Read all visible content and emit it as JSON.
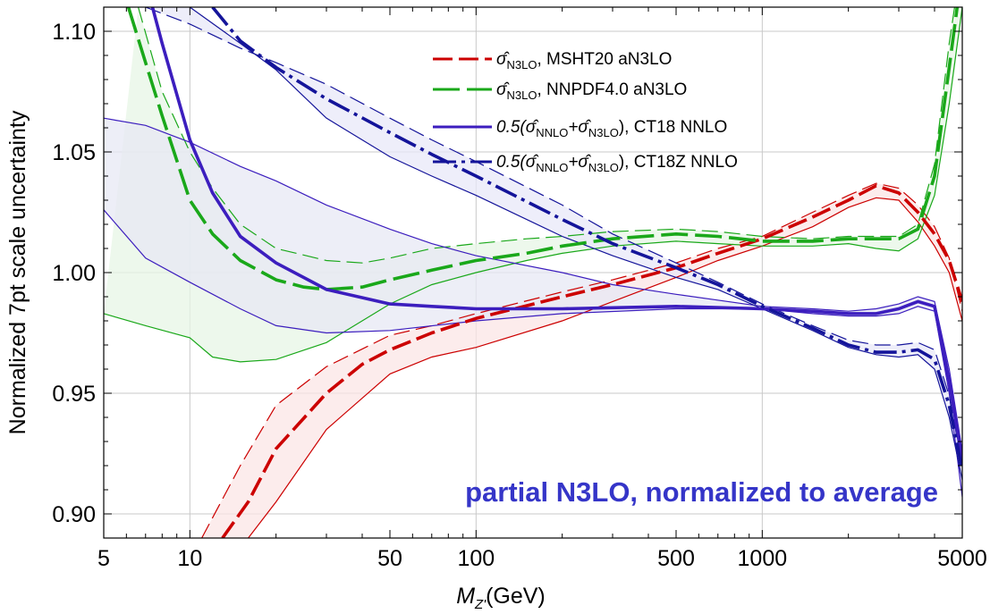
{
  "chart_data": {
    "type": "line",
    "xscale": "log",
    "xlim": [
      5,
      5000
    ],
    "ylim": [
      0.89,
      1.11
    ],
    "grid": true,
    "legend_position": "top-right",
    "xlabel": {
      "main": "M",
      "sub": "Z'",
      "unit": "(GeV)"
    },
    "ylabel": "Normalized 7pt scale uncertainty",
    "annotation": "partial N3LO, normalized to average",
    "annotation_color": "#3535c8",
    "x_ticks": [
      {
        "value": 5,
        "label": "5"
      },
      {
        "value": 10,
        "label": "10"
      },
      {
        "value": 50,
        "label": "50"
      },
      {
        "value": 100,
        "label": "100"
      },
      {
        "value": 500,
        "label": "500"
      },
      {
        "value": 1000,
        "label": "1000"
      },
      {
        "value": 5000,
        "label": "5000"
      }
    ],
    "x_grid": [
      10,
      100,
      1000
    ],
    "x_minor_ticks": [
      6,
      7,
      8,
      9,
      20,
      30,
      40,
      60,
      70,
      80,
      90,
      200,
      300,
      400,
      600,
      700,
      800,
      900,
      2000,
      3000,
      4000
    ],
    "y_ticks": [
      {
        "value": 0.9,
        "label": "0.90"
      },
      {
        "value": 0.95,
        "label": "0.95"
      },
      {
        "value": 1.0,
        "label": "1.00"
      },
      {
        "value": 1.05,
        "label": "1.05"
      },
      {
        "value": 1.1,
        "label": "1.10"
      }
    ],
    "legend": [
      {
        "series": "mshtb",
        "prefix": "σ̂",
        "sub1": "N3LO",
        "mid": "",
        "sub2": "",
        "suffix": ", MSHT20 aN3LO"
      },
      {
        "series": "nnpdfb",
        "prefix": "σ̂",
        "sub1": "N3LO",
        "mid": "",
        "sub2": "",
        "suffix": ", NNPDF4.0 aN3LO"
      },
      {
        "series": "ct18b",
        "prefix": "0.5(σ̂",
        "sub1": "NNLO",
        "mid": "+σ̂",
        "sub2": "N3LO",
        "suffix": "), CT18 NNLO"
      },
      {
        "series": "ct18zb",
        "prefix": "0.5(σ̂",
        "sub1": "NNLO",
        "mid": "+σ̂",
        "sub2": "N3LO",
        "suffix": "), CT18Z NNLO"
      }
    ],
    "bands": [
      {
        "id": "mshtb",
        "color": "#cc0000",
        "fill": "#fbe6e6",
        "dash": "22 7",
        "central": [
          [
            13,
            0.89
          ],
          [
            16,
            0.905
          ],
          [
            20,
            0.927
          ],
          [
            30,
            0.95
          ],
          [
            40,
            0.962
          ],
          [
            50,
            0.968
          ],
          [
            70,
            0.975
          ],
          [
            100,
            0.981
          ],
          [
            200,
            0.99
          ],
          [
            300,
            0.995
          ],
          [
            500,
            1.002
          ],
          [
            700,
            1.008
          ],
          [
            1000,
            1.014
          ],
          [
            1500,
            1.023
          ],
          [
            2000,
            1.03
          ],
          [
            2500,
            1.036
          ],
          [
            3000,
            1.033
          ],
          [
            3500,
            1.025
          ],
          [
            4000,
            1.016
          ],
          [
            4500,
            1.005
          ],
          [
            5000,
            0.988
          ]
        ],
        "upper": [
          [
            11,
            0.89
          ],
          [
            15,
            0.92
          ],
          [
            20,
            0.945
          ],
          [
            30,
            0.961
          ],
          [
            50,
            0.974
          ],
          [
            70,
            0.978
          ],
          [
            100,
            0.983
          ],
          [
            200,
            0.992
          ],
          [
            300,
            0.997
          ],
          [
            500,
            1.004
          ],
          [
            700,
            1.01
          ],
          [
            1000,
            1.015
          ],
          [
            1500,
            1.025
          ],
          [
            2000,
            1.032
          ],
          [
            2500,
            1.037
          ],
          [
            3000,
            1.035
          ],
          [
            3500,
            1.028
          ],
          [
            4000,
            1.019
          ],
          [
            4500,
            1.006
          ],
          [
            5000,
            0.984
          ]
        ],
        "lower": [
          [
            16,
            0.89
          ],
          [
            20,
            0.905
          ],
          [
            30,
            0.935
          ],
          [
            50,
            0.958
          ],
          [
            70,
            0.965
          ],
          [
            100,
            0.969
          ],
          [
            200,
            0.98
          ],
          [
            300,
            0.988
          ],
          [
            500,
            0.998
          ],
          [
            700,
            1.005
          ],
          [
            1000,
            1.011
          ],
          [
            1500,
            1.019
          ],
          [
            2000,
            1.027
          ],
          [
            2500,
            1.031
          ],
          [
            3000,
            1.03
          ],
          [
            3500,
            1.021
          ],
          [
            4000,
            1.011
          ],
          [
            4500,
            1.0
          ],
          [
            5000,
            0.98
          ]
        ]
      },
      {
        "id": "nnpdfb",
        "color": "#1aa81a",
        "fill": "#e7f5e6",
        "dash": "30 8",
        "central": [
          [
            6.1,
            1.11
          ],
          [
            7,
            1.087
          ],
          [
            8,
            1.065
          ],
          [
            10,
            1.03
          ],
          [
            12,
            1.016
          ],
          [
            15,
            1.005
          ],
          [
            20,
            0.997
          ],
          [
            25,
            0.994
          ],
          [
            30,
            0.993
          ],
          [
            40,
            0.994
          ],
          [
            50,
            0.997
          ],
          [
            70,
            1.001
          ],
          [
            100,
            1.005
          ],
          [
            150,
            1.008
          ],
          [
            200,
            1.011
          ],
          [
            300,
            1.014
          ],
          [
            500,
            1.016
          ],
          [
            700,
            1.015
          ],
          [
            1000,
            1.013
          ],
          [
            1500,
            1.013
          ],
          [
            2000,
            1.014
          ],
          [
            2500,
            1.014
          ],
          [
            3000,
            1.014
          ],
          [
            3500,
            1.018
          ],
          [
            4000,
            1.04
          ],
          [
            4500,
            1.085
          ],
          [
            4800,
            1.11
          ]
        ],
        "upper": [
          [
            6.6,
            1.11
          ],
          [
            8,
            1.075
          ],
          [
            10,
            1.05
          ],
          [
            12,
            1.035
          ],
          [
            15,
            1.02
          ],
          [
            20,
            1.01
          ],
          [
            30,
            1.005
          ],
          [
            40,
            1.004
          ],
          [
            50,
            1.006
          ],
          [
            70,
            1.01
          ],
          [
            100,
            1.012
          ],
          [
            150,
            1.014
          ],
          [
            200,
            1.015
          ],
          [
            300,
            1.017
          ],
          [
            500,
            1.018
          ],
          [
            700,
            1.017
          ],
          [
            1000,
            1.015
          ],
          [
            1500,
            1.014
          ],
          [
            2000,
            1.015
          ],
          [
            2500,
            1.015
          ],
          [
            3000,
            1.015
          ],
          [
            3500,
            1.02
          ],
          [
            4000,
            1.045
          ],
          [
            4500,
            1.095
          ],
          [
            4700,
            1.11
          ]
        ],
        "lower": [
          [
            5,
            0.983
          ],
          [
            7,
            0.978
          ],
          [
            10,
            0.973
          ],
          [
            12,
            0.965
          ],
          [
            15,
            0.963
          ],
          [
            20,
            0.964
          ],
          [
            30,
            0.971
          ],
          [
            40,
            0.98
          ],
          [
            50,
            0.987
          ],
          [
            70,
            0.995
          ],
          [
            100,
            1.0
          ],
          [
            150,
            1.005
          ],
          [
            200,
            1.008
          ],
          [
            300,
            1.011
          ],
          [
            500,
            1.013
          ],
          [
            700,
            1.012
          ],
          [
            1000,
            1.011
          ],
          [
            1500,
            1.011
          ],
          [
            2000,
            1.012
          ],
          [
            2500,
            1.01
          ],
          [
            3000,
            1.009
          ],
          [
            3500,
            1.014
          ],
          [
            4000,
            1.032
          ],
          [
            4500,
            1.07
          ],
          [
            5000,
            1.11
          ]
        ]
      },
      {
        "id": "ct18b",
        "color": "#3c1ebe",
        "fill": "#e7e8f4",
        "dash": "",
        "central": [
          [
            7.4,
            1.11
          ],
          [
            8,
            1.095
          ],
          [
            10,
            1.055
          ],
          [
            12,
            1.033
          ],
          [
            15,
            1.015
          ],
          [
            20,
            1.004
          ],
          [
            30,
            0.993
          ],
          [
            50,
            0.987
          ],
          [
            70,
            0.986
          ],
          [
            100,
            0.985
          ],
          [
            200,
            0.985
          ],
          [
            500,
            0.986
          ],
          [
            1000,
            0.985
          ],
          [
            1500,
            0.984
          ],
          [
            2000,
            0.983
          ],
          [
            2500,
            0.983
          ],
          [
            3000,
            0.985
          ],
          [
            3500,
            0.988
          ],
          [
            4000,
            0.986
          ],
          [
            4500,
            0.955
          ],
          [
            5000,
            0.922
          ]
        ],
        "upper": [
          [
            5,
            1.064
          ],
          [
            7,
            1.061
          ],
          [
            10,
            1.054
          ],
          [
            15,
            1.044
          ],
          [
            20,
            1.038
          ],
          [
            30,
            1.028
          ],
          [
            50,
            1.018
          ],
          [
            70,
            1.012
          ],
          [
            100,
            1.007
          ],
          [
            200,
            1.0
          ],
          [
            300,
            0.995
          ],
          [
            500,
            0.991
          ],
          [
            1000,
            0.986
          ],
          [
            1500,
            0.985
          ],
          [
            2000,
            0.984
          ],
          [
            2500,
            0.985
          ],
          [
            3000,
            0.987
          ],
          [
            3500,
            0.99
          ],
          [
            4000,
            0.988
          ],
          [
            4500,
            0.96
          ],
          [
            5000,
            0.926
          ]
        ],
        "lower": [
          [
            5,
            1.026
          ],
          [
            7,
            1.006
          ],
          [
            10,
            0.996
          ],
          [
            15,
            0.985
          ],
          [
            20,
            0.978
          ],
          [
            30,
            0.975
          ],
          [
            50,
            0.976
          ],
          [
            100,
            0.98
          ],
          [
            200,
            0.983
          ],
          [
            500,
            0.985
          ],
          [
            1000,
            0.985
          ],
          [
            1500,
            0.983
          ],
          [
            2000,
            0.982
          ],
          [
            2500,
            0.982
          ],
          [
            3000,
            0.983
          ],
          [
            3500,
            0.986
          ],
          [
            4000,
            0.984
          ],
          [
            4500,
            0.95
          ],
          [
            5000,
            0.907
          ]
        ]
      },
      {
        "id": "ct18zb",
        "color": "#14149a",
        "fill": "#e8e8f8",
        "dash": "26 6 4 6",
        "central": [
          [
            12,
            1.11
          ],
          [
            15,
            1.096
          ],
          [
            20,
            1.085
          ],
          [
            30,
            1.072
          ],
          [
            50,
            1.058
          ],
          [
            70,
            1.049
          ],
          [
            100,
            1.04
          ],
          [
            200,
            1.022
          ],
          [
            300,
            1.012
          ],
          [
            500,
            1.002
          ],
          [
            700,
            0.995
          ],
          [
            1000,
            0.986
          ],
          [
            1500,
            0.977
          ],
          [
            2000,
            0.97
          ],
          [
            2500,
            0.967
          ],
          [
            3000,
            0.967
          ],
          [
            3500,
            0.968
          ],
          [
            4000,
            0.964
          ],
          [
            4500,
            0.945
          ],
          [
            5000,
            0.918
          ]
        ],
        "upper": [
          [
            7,
            1.11
          ],
          [
            10,
            1.103
          ],
          [
            15,
            1.093
          ],
          [
            20,
            1.087
          ],
          [
            30,
            1.078
          ],
          [
            50,
            1.064
          ],
          [
            70,
            1.055
          ],
          [
            100,
            1.046
          ],
          [
            200,
            1.028
          ],
          [
            300,
            1.016
          ],
          [
            500,
            1.004
          ],
          [
            700,
            0.996
          ],
          [
            1000,
            0.987
          ],
          [
            1500,
            0.978
          ],
          [
            2000,
            0.972
          ],
          [
            2500,
            0.97
          ],
          [
            3000,
            0.97
          ],
          [
            3500,
            0.971
          ],
          [
            4000,
            0.968
          ],
          [
            4500,
            0.949
          ],
          [
            5000,
            0.92
          ]
        ],
        "lower": [
          [
            10,
            1.11
          ],
          [
            15,
            1.095
          ],
          [
            20,
            1.084
          ],
          [
            30,
            1.064
          ],
          [
            50,
            1.048
          ],
          [
            70,
            1.04
          ],
          [
            100,
            1.032
          ],
          [
            200,
            1.015
          ],
          [
            300,
            1.007
          ],
          [
            500,
            0.998
          ],
          [
            700,
            0.993
          ],
          [
            1000,
            0.985
          ],
          [
            1500,
            0.976
          ],
          [
            2000,
            0.969
          ],
          [
            2500,
            0.966
          ],
          [
            3000,
            0.965
          ],
          [
            3500,
            0.966
          ],
          [
            4000,
            0.96
          ],
          [
            4500,
            0.94
          ],
          [
            5000,
            0.914
          ]
        ]
      }
    ]
  }
}
